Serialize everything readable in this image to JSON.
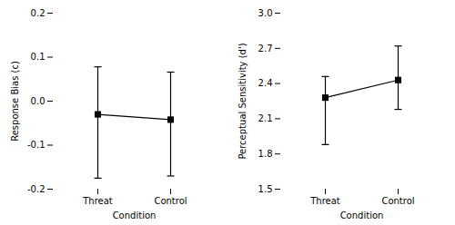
{
  "chart_data": [
    {
      "type": "line",
      "marker": "square",
      "xlabel": "Condition",
      "ylabel": "Response Bias (c)",
      "categories": [
        "Threat",
        "Control"
      ],
      "values": [
        -0.03,
        -0.042
      ],
      "error_low": [
        0.145,
        0.128
      ],
      "error_high": [
        0.108,
        0.108
      ],
      "ylim": [
        -0.2,
        0.2
      ],
      "yticks": [
        -0.2,
        -0.1,
        {
          "value": 0.0,
          "label": "0.0"
        },
        0.1,
        0.2
      ]
    },
    {
      "type": "line",
      "marker": "square",
      "xlabel": "Condition",
      "ylabel": "Perceptual Sensitivity (d')",
      "categories": [
        "Threat",
        "Control"
      ],
      "values": [
        2.28,
        2.43
      ],
      "error_low": [
        0.4,
        0.25
      ],
      "error_high": [
        0.18,
        0.29
      ],
      "ylim": [
        1.5,
        3.0
      ],
      "yticks": [
        1.5,
        1.8,
        2.1,
        2.4,
        2.7,
        {
          "value": 3.0,
          "label": "3.0"
        }
      ]
    }
  ]
}
